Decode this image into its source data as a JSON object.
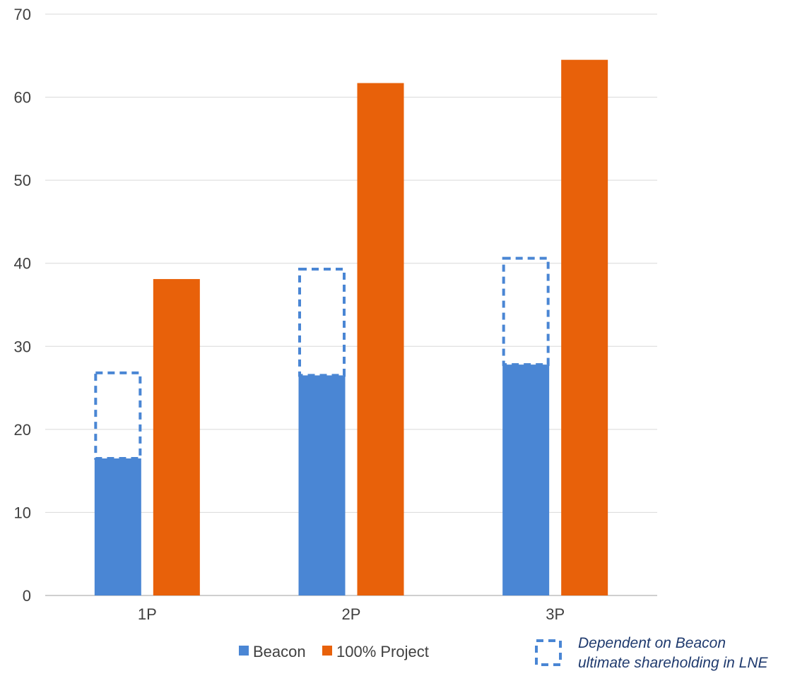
{
  "chart_data": {
    "type": "bar",
    "categories": [
      "1P",
      "2P",
      "3P"
    ],
    "series": [
      {
        "name": "Beacon",
        "values": [
          16.5,
          26.5,
          27.8
        ],
        "color": "#4a86d4"
      },
      {
        "name": "100% Project",
        "values": [
          38.1,
          61.7,
          64.5
        ],
        "color": "#e8610a"
      }
    ],
    "dependent_range": {
      "values_from": [
        16.5,
        26.5,
        27.8
      ],
      "values_to": [
        26.8,
        39.3,
        40.6
      ],
      "style": "dashed-outline",
      "color": "#4a86d4"
    },
    "ylim": [
      0,
      70
    ],
    "yticks": [
      "0",
      "10",
      "20",
      "30",
      "40",
      "50",
      "60",
      "70"
    ],
    "grid": true,
    "legend": {
      "position": "bottom",
      "items": [
        "Beacon",
        "100% Project"
      ]
    },
    "annotation": {
      "line1": "Dependent on Beacon",
      "line2": "ultimate shareholding in LNE"
    }
  }
}
